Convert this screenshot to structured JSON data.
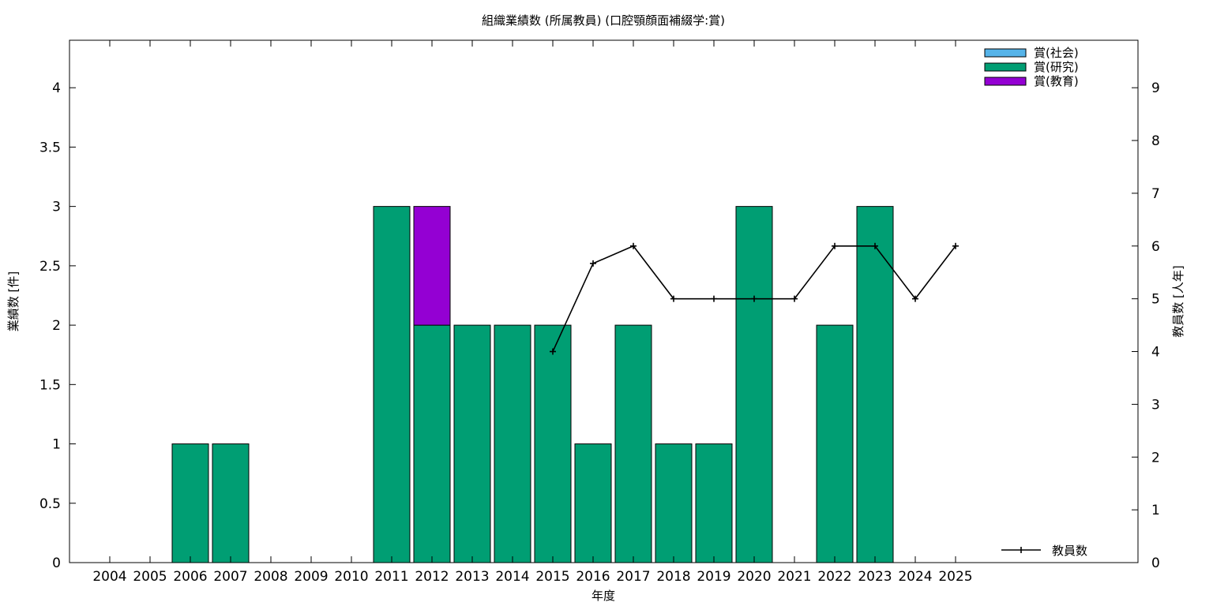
{
  "chart_data": {
    "type": "bar",
    "title": "組織業績数 (所属教員) (口腔顎顔面補綴学:賞)",
    "xlabel": "年度",
    "ylabel": "業績数 [件]",
    "y2label": "教員数 [人年]",
    "categories": [
      "2004",
      "2005",
      "2006",
      "2007",
      "2008",
      "2009",
      "2010",
      "2011",
      "2012",
      "2013",
      "2014",
      "2015",
      "2016",
      "2017",
      "2018",
      "2019",
      "2020",
      "2021",
      "2022",
      "2023",
      "2024",
      "2025"
    ],
    "stacked": true,
    "ylim": [
      0,
      4.4
    ],
    "yticks": [
      "0",
      "0.5",
      "1",
      "1.5",
      "2",
      "2.5",
      "3",
      "3.5",
      "4"
    ],
    "y2lim": [
      0,
      9.9
    ],
    "y2ticks": [
      "0",
      "1",
      "2",
      "3",
      "4",
      "5",
      "6",
      "7",
      "8",
      "9"
    ],
    "grid": false,
    "legend_position": "top-right",
    "series": [
      {
        "name": "賞(社会)",
        "color": "#56b4e9",
        "values": [
          0,
          0,
          0,
          0,
          0,
          0,
          0,
          0,
          0,
          0,
          0,
          0,
          0,
          0,
          0,
          0,
          0,
          0,
          0,
          0,
          0,
          0
        ]
      },
      {
        "name": "賞(研究)",
        "color": "#009e73",
        "values": [
          0,
          0,
          1,
          1,
          0,
          0,
          0,
          3,
          2,
          2,
          2,
          2,
          1,
          2,
          1,
          1,
          3,
          0,
          2,
          3,
          0,
          0
        ]
      },
      {
        "name": "賞(教育)",
        "color": "#9400d3",
        "values": [
          0,
          0,
          0,
          0,
          0,
          0,
          0,
          0,
          1,
          0,
          0,
          0,
          0,
          0,
          0,
          0,
          0,
          0,
          0,
          0,
          0,
          0
        ]
      }
    ],
    "line_series": {
      "name": "教員数",
      "color": "#000000",
      "axis": "right",
      "points": [
        {
          "x": "2015",
          "y": 4
        },
        {
          "x": "2016",
          "y": 5.67
        },
        {
          "x": "2017",
          "y": 6
        },
        {
          "x": "2018",
          "y": 5
        },
        {
          "x": "2019",
          "y": 5
        },
        {
          "x": "2020",
          "y": 5
        },
        {
          "x": "2021",
          "y": 5
        },
        {
          "x": "2022",
          "y": 6
        },
        {
          "x": "2023",
          "y": 6
        },
        {
          "x": "2024",
          "y": 5
        },
        {
          "x": "2025",
          "y": 6
        }
      ]
    }
  }
}
